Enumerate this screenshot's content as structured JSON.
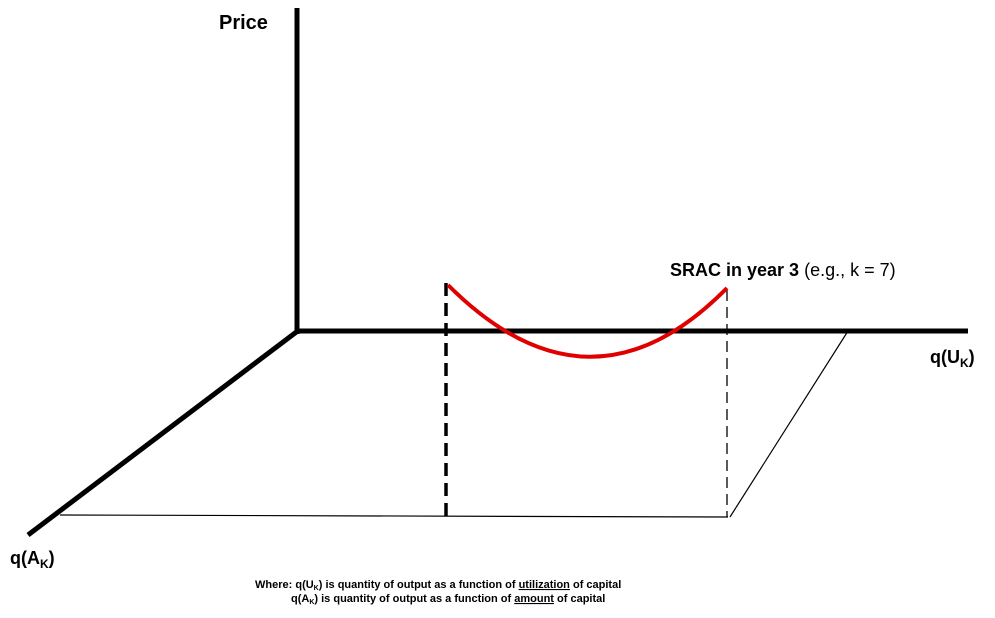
{
  "axes": {
    "y_label": "Price",
    "x_label": {
      "base": "q(U",
      "sub": "K",
      "close": ")"
    },
    "z_label": {
      "base": "q(A",
      "sub": "K",
      "close": ")"
    }
  },
  "curve": {
    "label_bold": "SRAC in year 3",
    "label_note": "(e.g., k = 7)"
  },
  "note": {
    "lead": "Where:",
    "lines": [
      {
        "term": {
          "base": "q(U",
          "sub": "K",
          "close": ")"
        },
        "text": "is quantity of output as a function of",
        "emphasis": "utilization",
        "tail": "of capital"
      },
      {
        "term": {
          "base": "q(A",
          "sub": "K",
          "close": ")"
        },
        "text": "is quantity of output as a function of",
        "emphasis": "amount",
        "tail": "of capital"
      }
    ]
  }
}
